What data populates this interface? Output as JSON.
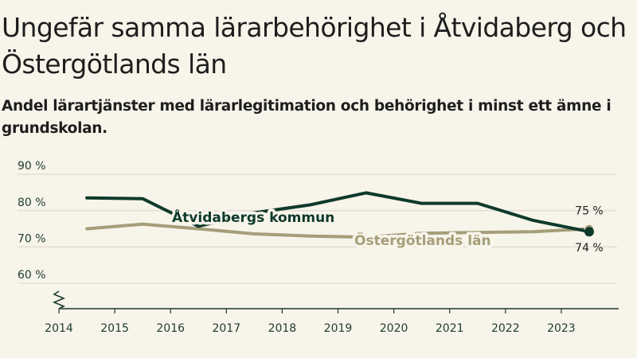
{
  "header": {
    "title": "Ungefär samma lärarbehörighet i Åtvidaberg och Östergötlands län",
    "subtitle": "Andel lärartjänster med lärarlegitimation och behörighet i minst ett ämne i grundskolan."
  },
  "colors": {
    "background": "#f7f4ea",
    "kommun": "#0e3a2c",
    "lan": "#a59e79",
    "grid": "#dedbd0",
    "axis": "#1e3a30"
  },
  "chart_data": {
    "type": "line",
    "title": "Ungefär samma lärarbehörighet i Åtvidaberg och Östergötlands län",
    "subtitle": "Andel lärartjänster med lärarlegitimation och behörighet i minst ett ämne i grundskolan.",
    "xlabel": "",
    "ylabel": "",
    "x": [
      2014.5,
      2015.5,
      2016.5,
      2017.5,
      2018.5,
      2019.5,
      2020.5,
      2021.5,
      2022.5,
      2023.5
    ],
    "xlim": [
      2014,
      2024
    ],
    "ylim": [
      53,
      92
    ],
    "x_ticks": [
      "2014",
      "2015",
      "2016",
      "2017",
      "2018",
      "2019",
      "2020",
      "2021",
      "2022",
      "2023"
    ],
    "y_ticks": [
      {
        "value": 90,
        "label": "90 %"
      },
      {
        "value": 80,
        "label": "80 %"
      },
      {
        "value": 70,
        "label": "70 %"
      },
      {
        "value": 60,
        "label": "60 %"
      }
    ],
    "grid": true,
    "axis_break": true,
    "series": [
      {
        "name": "Åtvidabergs kommun",
        "color": "#0e3a2c",
        "values": [
          83.5,
          83.3,
          75.7,
          79.4,
          81.6,
          84.9,
          82.0,
          82.0,
          77.3,
          74.2
        ],
        "end_label": "74 %",
        "end_marker": true
      },
      {
        "name": "Östergötlands län",
        "color": "#a59e79",
        "values": [
          75.0,
          76.3,
          75.0,
          73.6,
          73.0,
          72.7,
          73.8,
          74.0,
          74.2,
          75.0
        ],
        "end_label": "75 %",
        "end_marker": true
      }
    ]
  }
}
